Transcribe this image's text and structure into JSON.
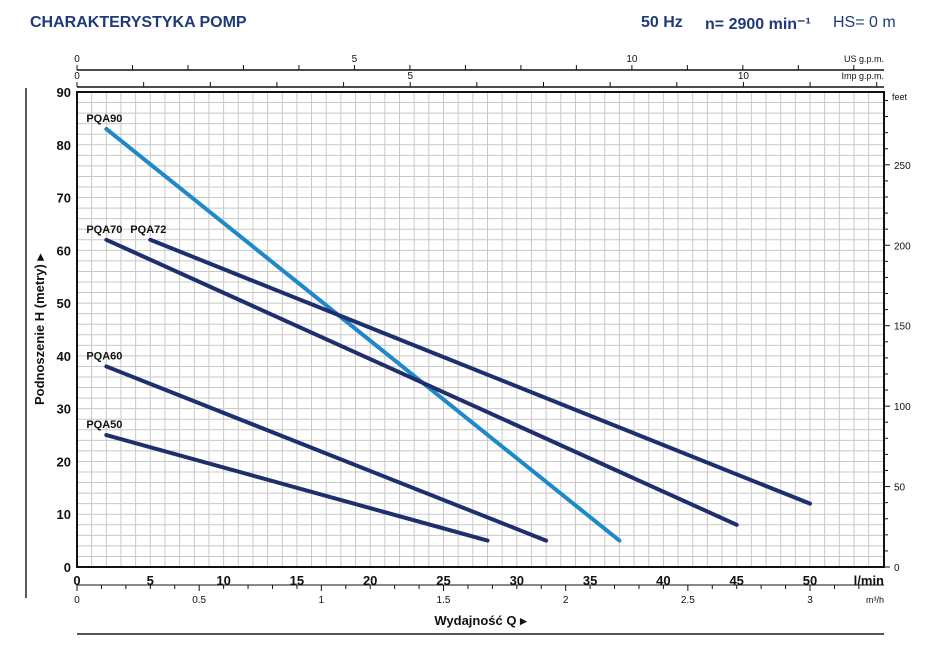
{
  "header": {
    "title": "CHARAKTERYSTYKA POMP",
    "freq": "50 Hz",
    "speed": "n= 2900 min⁻¹",
    "hs": "HS= 0 m"
  },
  "chart_data": {
    "type": "line",
    "title": "CHARAKTERYSTYKA POMP",
    "xlabel": "Wydajność Q ▸",
    "ylabel": "Podnoszenie H (metry) ▸",
    "x_unit": "l/min",
    "xlim": [
      0,
      55
    ],
    "ylim": [
      0,
      90
    ],
    "x_ticks": [
      0,
      5,
      10,
      15,
      20,
      25,
      30,
      35,
      40,
      45,
      50
    ],
    "y_ticks": [
      0,
      10,
      20,
      30,
      40,
      50,
      60,
      70,
      80,
      90
    ],
    "grid": true,
    "secondary_axes": {
      "us_gpm": {
        "label": "US g.p.m.",
        "ticks": [
          0,
          5,
          10
        ]
      },
      "imp_gpm": {
        "label": "Imp g.p.m.",
        "ticks": [
          0,
          5,
          10
        ]
      },
      "m3h": {
        "label": "m³/h",
        "ticks": [
          "0",
          "0.5",
          "1",
          "1.5",
          "2",
          "2.5",
          "3"
        ]
      },
      "feet": {
        "label": "feet",
        "ticks": [
          0,
          50,
          100,
          150,
          200,
          250
        ]
      }
    },
    "series": [
      {
        "name": "PQA90",
        "color": "#1e88c8",
        "x": [
          2,
          37
        ],
        "y": [
          83,
          5
        ]
      },
      {
        "name": "PQA70",
        "color": "#1f2f6e",
        "x": [
          2,
          45
        ],
        "y": [
          62,
          8
        ]
      },
      {
        "name": "PQA72",
        "color": "#1f2f6e",
        "x": [
          5,
          50
        ],
        "y": [
          62,
          12
        ]
      },
      {
        "name": "PQA60",
        "color": "#1f2f6e",
        "x": [
          2,
          32
        ],
        "y": [
          38,
          5
        ]
      },
      {
        "name": "PQA50",
        "color": "#1f2f6e",
        "x": [
          2,
          28
        ],
        "y": [
          25,
          5
        ]
      }
    ]
  }
}
